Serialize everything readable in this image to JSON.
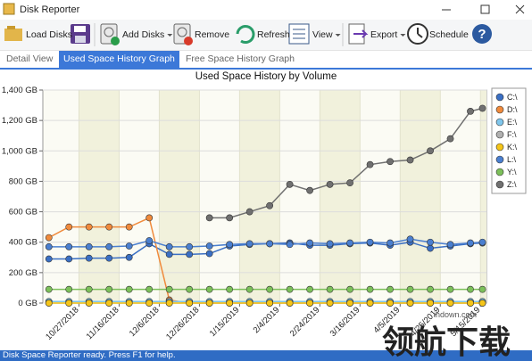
{
  "window": {
    "title": "Disk Reporter"
  },
  "toolbar": {
    "items": [
      "Load Disks",
      "Add Disks",
      "Remove",
      "Refresh",
      "View",
      "Export",
      "Schedule"
    ]
  },
  "tabs": [
    {
      "label": "Detail View",
      "active": false
    },
    {
      "label": "Used Space History Graph",
      "active": true
    },
    {
      "label": "Free Space History Graph",
      "active": false
    }
  ],
  "status_bar": "Disk Space Reporter ready. Press F1 for help.",
  "watermark": [
    "ihdown.com",
    "领航下载"
  ],
  "chart_data": {
    "type": "line",
    "title": "Used Space History by Volume",
    "x": [
      "2018-10-12",
      "2018-10-22",
      "2018-11-01",
      "2018-11-11",
      "2018-11-21",
      "2018-12-01",
      "2018-12-11",
      "2018-12-21",
      "2018-12-31",
      "2019-01-10",
      "2019-01-20",
      "2019-01-30",
      "2019-02-09",
      "2019-02-19",
      "2019-03-01",
      "2019-03-11",
      "2019-03-21",
      "2019-03-31",
      "2019-04-10",
      "2019-04-20",
      "2019-04-30",
      "2019-05-10",
      "2019-05-16"
    ],
    "xlim": [
      "2018-10-09",
      "2019-05-18"
    ],
    "xticks": [
      {
        "value": "2018-10-27",
        "label": "10/27/2018"
      },
      {
        "value": "2018-11-16",
        "label": "11/16/2018"
      },
      {
        "value": "2018-12-06",
        "label": "12/6/2018"
      },
      {
        "value": "2018-12-26",
        "label": "12/26/2018"
      },
      {
        "value": "2019-01-15",
        "label": "1/15/2019"
      },
      {
        "value": "2019-02-04",
        "label": "2/4/2019"
      },
      {
        "value": "2019-02-24",
        "label": "2/24/2019"
      },
      {
        "value": "2019-03-16",
        "label": "3/16/2019"
      },
      {
        "value": "2019-04-05",
        "label": "4/5/2019"
      },
      {
        "value": "2019-04-25",
        "label": "4/25/2019"
      },
      {
        "value": "2019-05-15",
        "label": "5/15/2019"
      }
    ],
    "ylim": [
      0,
      1400
    ],
    "yticks": [
      {
        "value": 0,
        "label": "0 GB"
      },
      {
        "value": 200,
        "label": "200 GB"
      },
      {
        "value": 400,
        "label": "400 GB"
      },
      {
        "value": 600,
        "label": "600 GB"
      },
      {
        "value": 800,
        "label": "800 GB"
      },
      {
        "value": 1000,
        "label": "1,000 GB"
      },
      {
        "value": 1200,
        "label": "1,200 GB"
      },
      {
        "value": 1400,
        "label": "1,400 GB"
      }
    ],
    "grid": true,
    "legend": "right",
    "series": [
      {
        "name": "C:\\",
        "color": "#3a6fc4",
        "values": [
          290,
          290,
          295,
          295,
          300,
          390,
          320,
          320,
          325,
          375,
          385,
          390,
          395,
          380,
          380,
          390,
          395,
          380,
          400,
          360,
          375,
          390,
          395
        ]
      },
      {
        "name": "D:\\",
        "color": "#f08a3c",
        "values": [
          430,
          500,
          500,
          500,
          500,
          560,
          20,
          0,
          0,
          0,
          0,
          0,
          0,
          0,
          0,
          0,
          0,
          0,
          0,
          0,
          0,
          0,
          0
        ]
      },
      {
        "name": "E:\\",
        "color": "#7fc6ec",
        "values": [
          10,
          10,
          10,
          10,
          10,
          10,
          10,
          10,
          10,
          10,
          10,
          10,
          10,
          10,
          10,
          10,
          10,
          10,
          10,
          10,
          10,
          10,
          10
        ]
      },
      {
        "name": "F:\\",
        "color": "#b0b0b0",
        "values": [
          0,
          0,
          0,
          0,
          0,
          0,
          0,
          0,
          0,
          0,
          0,
          0,
          0,
          0,
          0,
          0,
          0,
          0,
          0,
          0,
          0,
          0,
          0
        ]
      },
      {
        "name": "K:\\",
        "color": "#f5c518",
        "values": [
          0,
          0,
          0,
          0,
          0,
          0,
          0,
          0,
          0,
          0,
          0,
          0,
          0,
          0,
          0,
          0,
          0,
          0,
          0,
          0,
          0,
          0,
          0
        ]
      },
      {
        "name": "L:\\",
        "color": "#4a7fd0",
        "values": [
          370,
          370,
          370,
          370,
          375,
          410,
          370,
          370,
          375,
          385,
          390,
          390,
          385,
          395,
          390,
          395,
          400,
          395,
          420,
          400,
          385,
          395,
          400
        ]
      },
      {
        "name": "Y:\\",
        "color": "#7cc05a",
        "values": [
          90,
          90,
          90,
          90,
          90,
          90,
          90,
          90,
          90,
          90,
          90,
          90,
          90,
          90,
          90,
          90,
          90,
          90,
          90,
          90,
          90,
          90,
          90
        ]
      },
      {
        "name": "Z:\\",
        "color": "#707070",
        "values": [
          null,
          null,
          null,
          null,
          null,
          null,
          null,
          null,
          560,
          560,
          600,
          640,
          780,
          740,
          780,
          790,
          910,
          930,
          940,
          1000,
          1080,
          1260,
          1280
        ]
      }
    ]
  }
}
